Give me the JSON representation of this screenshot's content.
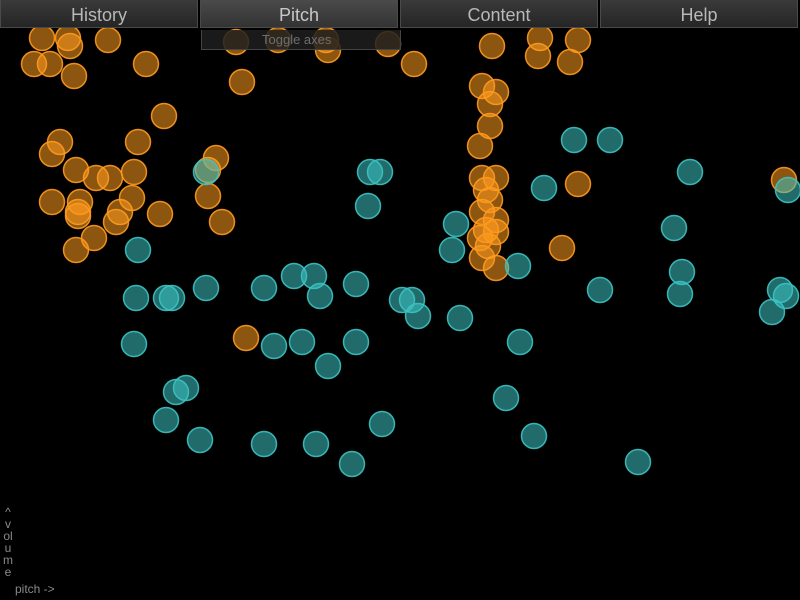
{
  "menu": {
    "tabs": [
      {
        "label": "History"
      },
      {
        "label": "Pitch"
      },
      {
        "label": "Content"
      },
      {
        "label": "Help"
      }
    ],
    "active_tab": "Pitch",
    "dropdown": {
      "toggle_axes_label": "Toggle axes"
    }
  },
  "axes": {
    "y_label": "^ volume",
    "x_label": "pitch ->"
  },
  "colors": {
    "orange": "#ff9a1e",
    "teal": "#3cc3c3",
    "background": "#000000"
  },
  "chart_data": {
    "type": "scatter",
    "series": [
      {
        "color": "orange",
        "points": [
          [
            42,
            38
          ],
          [
            68,
            38
          ],
          [
            70,
            46
          ],
          [
            108,
            40
          ],
          [
            34,
            64
          ],
          [
            50,
            64
          ],
          [
            74,
            76
          ],
          [
            146,
            64
          ],
          [
            236,
            42
          ],
          [
            278,
            40
          ],
          [
            326,
            40
          ],
          [
            328,
            50
          ],
          [
            388,
            44
          ],
          [
            414,
            64
          ],
          [
            242,
            82
          ],
          [
            164,
            116
          ],
          [
            492,
            46
          ],
          [
            540,
            38
          ],
          [
            578,
            40
          ],
          [
            538,
            56
          ],
          [
            570,
            62
          ],
          [
            482,
            86
          ],
          [
            496,
            92
          ],
          [
            490,
            104
          ],
          [
            490,
            126
          ],
          [
            480,
            146
          ],
          [
            60,
            142
          ],
          [
            52,
            154
          ],
          [
            138,
            142
          ],
          [
            76,
            170
          ],
          [
            96,
            178
          ],
          [
            110,
            178
          ],
          [
            134,
            172
          ],
          [
            216,
            158
          ],
          [
            208,
            170
          ],
          [
            52,
            202
          ],
          [
            80,
            202
          ],
          [
            132,
            198
          ],
          [
            160,
            214
          ],
          [
            120,
            212
          ],
          [
            116,
            222
          ],
          [
            78,
            212
          ],
          [
            78,
            216
          ],
          [
            94,
            238
          ],
          [
            76,
            250
          ],
          [
            208,
            196
          ],
          [
            222,
            222
          ],
          [
            482,
            178
          ],
          [
            496,
            178
          ],
          [
            486,
            190
          ],
          [
            490,
            200
          ],
          [
            482,
            212
          ],
          [
            496,
            220
          ],
          [
            486,
            230
          ],
          [
            480,
            238
          ],
          [
            496,
            232
          ],
          [
            488,
            246
          ],
          [
            482,
            258
          ],
          [
            496,
            268
          ],
          [
            578,
            184
          ],
          [
            562,
            248
          ],
          [
            784,
            180
          ],
          [
            246,
            338
          ]
        ]
      },
      {
        "color": "teal",
        "points": [
          [
            574,
            140
          ],
          [
            610,
            140
          ],
          [
            690,
            172
          ],
          [
            788,
            190
          ],
          [
            544,
            188
          ],
          [
            674,
            228
          ],
          [
            370,
            172
          ],
          [
            380,
            172
          ],
          [
            368,
            206
          ],
          [
            206,
            172
          ],
          [
            138,
            250
          ],
          [
            456,
            224
          ],
          [
            452,
            250
          ],
          [
            518,
            266
          ],
          [
            682,
            272
          ],
          [
            600,
            290
          ],
          [
            680,
            294
          ],
          [
            780,
            290
          ],
          [
            786,
            296
          ],
          [
            772,
            312
          ],
          [
            294,
            276
          ],
          [
            314,
            276
          ],
          [
            264,
            288
          ],
          [
            206,
            288
          ],
          [
            320,
            296
          ],
          [
            356,
            284
          ],
          [
            402,
            300
          ],
          [
            412,
            300
          ],
          [
            418,
            316
          ],
          [
            460,
            318
          ],
          [
            136,
            298
          ],
          [
            166,
            298
          ],
          [
            172,
            298
          ],
          [
            134,
            344
          ],
          [
            274,
            346
          ],
          [
            302,
            342
          ],
          [
            356,
            342
          ],
          [
            328,
            366
          ],
          [
            520,
            342
          ],
          [
            176,
            392
          ],
          [
            186,
            388
          ],
          [
            166,
            420
          ],
          [
            200,
            440
          ],
          [
            264,
            444
          ],
          [
            316,
            444
          ],
          [
            352,
            464
          ],
          [
            382,
            424
          ],
          [
            506,
            398
          ],
          [
            534,
            436
          ],
          [
            638,
            462
          ]
        ]
      }
    ],
    "xlabel": "pitch ->",
    "ylabel": "^ volume"
  }
}
